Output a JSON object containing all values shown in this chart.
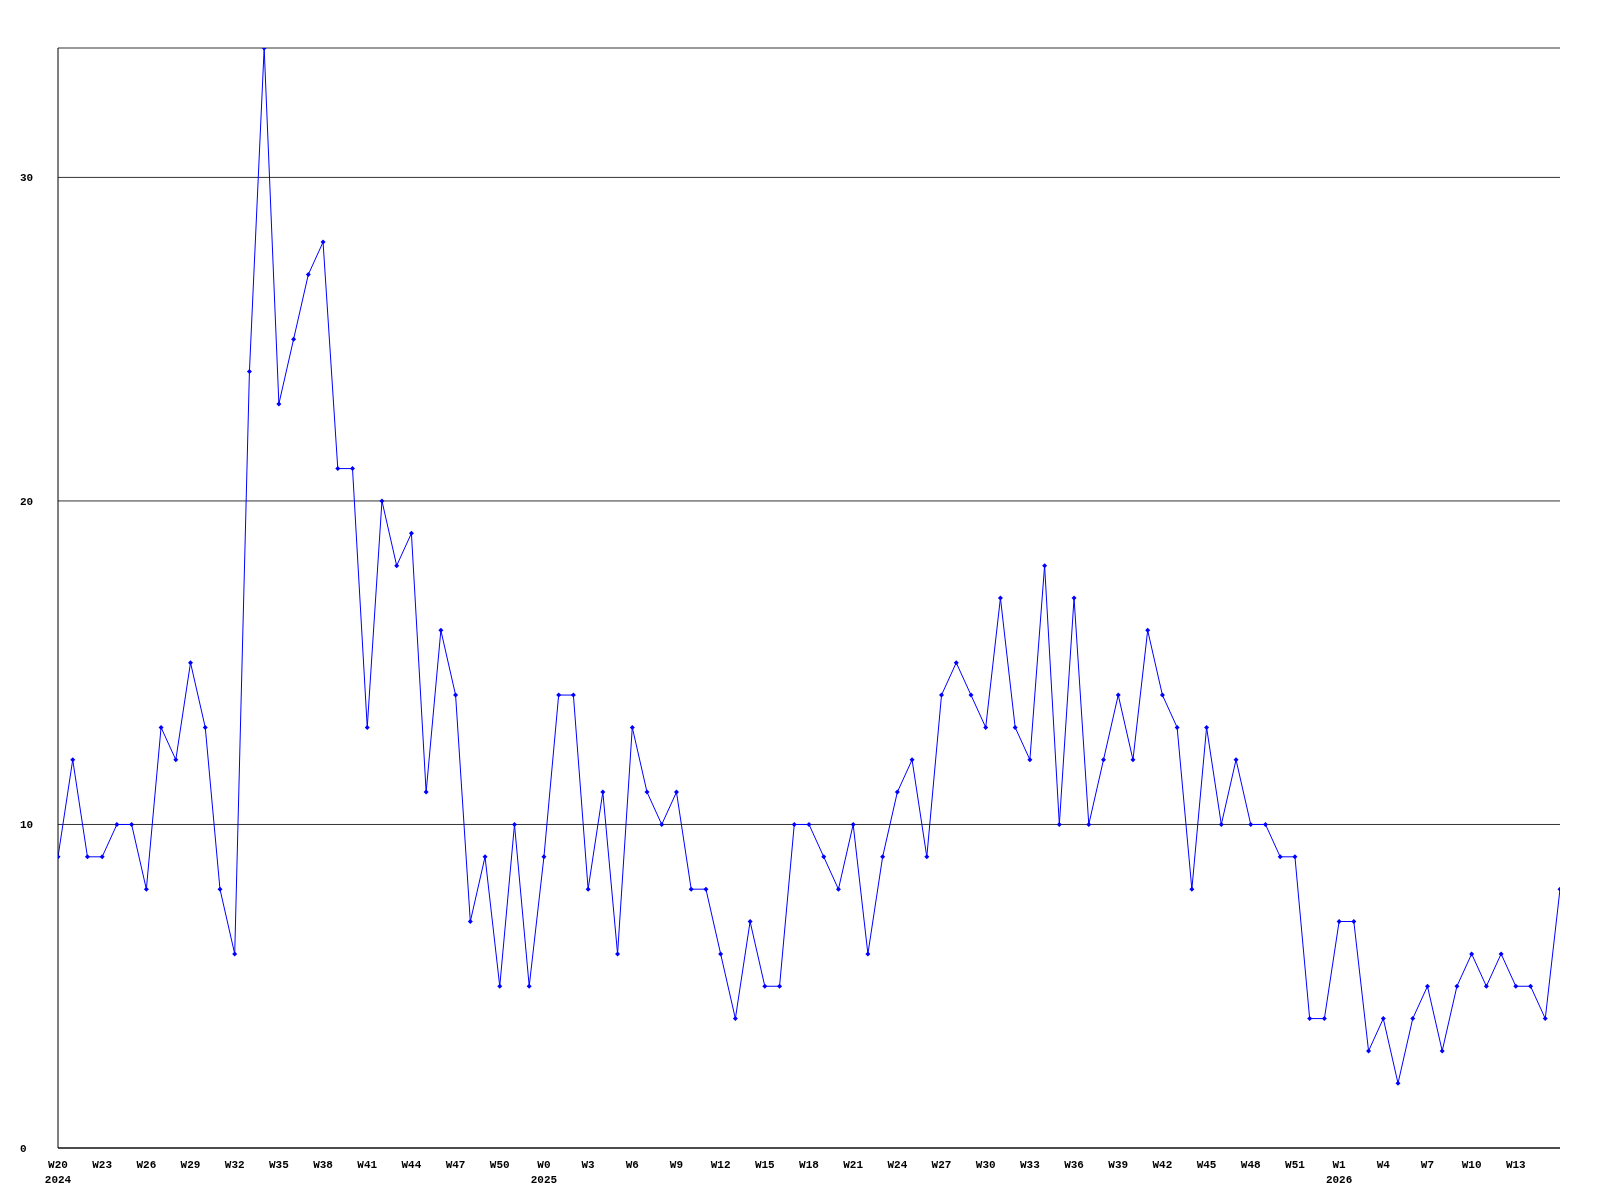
{
  "chart_data": {
    "type": "line",
    "categories": [
      "W20\n2024",
      null,
      null,
      "W23",
      null,
      null,
      "W26",
      null,
      null,
      "W29",
      null,
      null,
      "W32",
      null,
      null,
      "W35",
      null,
      null,
      "W38",
      null,
      null,
      "W41",
      null,
      null,
      "W44",
      null,
      null,
      "W47",
      null,
      null,
      "W50",
      null,
      null,
      "W0\n2025",
      null,
      null,
      "W3",
      null,
      null,
      "W6",
      null,
      null,
      "W9",
      null,
      null,
      "W12",
      null,
      null,
      "W15",
      null,
      null,
      "W18",
      null,
      null,
      "W21",
      null,
      null,
      "W24",
      null,
      null,
      "W27",
      null,
      null,
      "W30",
      null,
      null,
      "W33",
      null,
      null,
      "W36",
      null,
      null,
      "W39",
      null,
      null,
      "W42",
      null,
      null,
      "W45",
      null,
      null,
      "W48",
      null,
      null,
      "W51",
      null,
      null,
      "W1\n2026",
      null,
      null,
      "W4",
      null,
      null,
      "W7",
      null,
      null,
      "W10",
      null,
      null,
      "W13",
      null,
      null,
      null
    ],
    "series": [
      {
        "color": "#0000ff",
        "values": [
          9,
          12,
          9,
          9,
          10,
          10,
          8,
          13,
          12,
          15,
          13,
          8,
          6,
          24,
          34,
          23,
          25,
          27,
          28,
          21,
          21,
          13,
          20,
          18,
          19,
          11,
          16,
          14,
          7,
          9,
          5,
          10,
          5,
          9,
          14,
          14,
          8,
          11,
          6,
          13,
          11,
          10,
          11,
          8,
          8,
          6,
          4,
          7,
          5,
          5,
          10,
          10,
          9,
          8,
          10,
          6,
          9,
          11,
          12,
          9,
          14,
          15,
          14,
          13,
          17,
          13,
          12,
          18,
          10,
          17,
          10,
          12,
          14,
          12,
          16,
          14,
          13,
          8,
          13,
          10,
          12,
          10,
          10,
          9,
          9,
          4,
          4,
          7,
          7,
          3,
          4,
          2,
          4,
          5,
          3,
          5,
          6,
          5,
          6,
          5,
          5,
          4,
          8
        ]
      }
    ],
    "ylim": [
      0,
      34
    ],
    "yticks": [
      0,
      10,
      20,
      30
    ],
    "grid": "y",
    "marker": "diamond",
    "line_style": "solid"
  }
}
